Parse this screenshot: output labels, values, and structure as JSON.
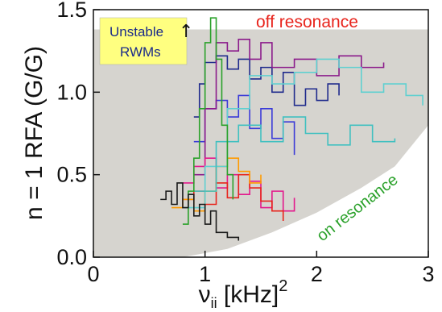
{
  "chart_data": {
    "type": "line",
    "xlabel_main": "ν",
    "xlabel_sub": "ii",
    "xlabel_unit": " [kHz]",
    "xlabel_sup": "2",
    "ylabel": "n = 1 RFA (G/G)",
    "xlim": [
      0,
      3
    ],
    "ylim": [
      0,
      1.5
    ],
    "x_ticks": [
      "0",
      "1",
      "2",
      "3"
    ],
    "y_ticks": [
      "0.0",
      "0.5",
      "1.0",
      "1.5"
    ],
    "stable_region_ymax": 1.38,
    "resonance_boundary": [
      [
        0.8,
        0.0
      ],
      [
        1.2,
        0.05
      ],
      [
        1.6,
        0.15
      ],
      [
        2.0,
        0.27
      ],
      [
        2.4,
        0.42
      ],
      [
        2.7,
        0.55
      ],
      [
        3.0,
        0.8
      ]
    ],
    "annotations": {
      "off_resonance": "off resonance",
      "on_resonance": "on resonance",
      "unstable_line1": "Unstable",
      "unstable_line2": "RWMs",
      "arrow": "↑"
    },
    "colors": {
      "region": "#d6d4cf",
      "boundary": "#ffffff",
      "box": "#ffff80",
      "off_resonance": "#e8241c",
      "on_resonance": "#2aa12a"
    },
    "series": [
      {
        "color": "#1f2a8c",
        "points": [
          [
            0.9,
            0.85
          ],
          [
            0.95,
            1.05
          ],
          [
            1.0,
            1.18
          ],
          [
            1.1,
            1.22
          ],
          [
            1.2,
            1.14
          ],
          [
            1.3,
            1.2
          ],
          [
            1.4,
            1.08
          ],
          [
            1.5,
            1.15
          ],
          [
            1.6,
            1.0
          ],
          [
            1.7,
            1.12
          ],
          [
            1.8,
            0.92
          ],
          [
            1.9,
            1.02
          ],
          [
            2.0,
            0.95
          ],
          [
            2.1,
            1.05
          ],
          [
            2.2,
            0.98
          ]
        ]
      },
      {
        "color": "#3a3ad8",
        "points": [
          [
            0.9,
            0.7
          ],
          [
            1.0,
            0.9
          ],
          [
            1.1,
            0.95
          ],
          [
            1.2,
            0.85
          ],
          [
            1.3,
            0.98
          ],
          [
            1.4,
            0.78
          ],
          [
            1.5,
            0.9
          ],
          [
            1.6,
            0.72
          ],
          [
            1.7,
            0.82
          ],
          [
            1.8,
            0.62
          ]
        ]
      },
      {
        "color": "#8b1a8b",
        "points": [
          [
            0.9,
            0.5
          ],
          [
            1.0,
            0.9
          ],
          [
            1.1,
            1.3
          ],
          [
            1.2,
            1.25
          ],
          [
            1.3,
            1.32
          ],
          [
            1.4,
            1.2
          ],
          [
            1.5,
            1.3
          ],
          [
            1.6,
            1.15
          ],
          [
            1.8,
            1.2
          ],
          [
            2.0,
            1.1
          ],
          [
            2.2,
            1.22
          ],
          [
            2.4,
            1.15
          ],
          [
            2.6,
            1.18
          ]
        ]
      },
      {
        "color": "#e3188c",
        "points": [
          [
            0.8,
            0.45
          ],
          [
            0.9,
            0.55
          ],
          [
            1.0,
            0.6
          ],
          [
            1.1,
            0.42
          ],
          [
            1.2,
            0.5
          ],
          [
            1.3,
            0.38
          ],
          [
            1.4,
            0.46
          ],
          [
            1.5,
            0.3
          ],
          [
            1.6,
            0.4
          ],
          [
            1.7,
            0.28
          ],
          [
            1.8,
            0.36
          ]
        ]
      },
      {
        "color": "#e8241c",
        "points": [
          [
            0.8,
            0.35
          ],
          [
            0.9,
            0.4
          ],
          [
            1.0,
            0.32
          ],
          [
            1.1,
            0.45
          ],
          [
            1.2,
            0.36
          ],
          [
            1.3,
            0.5
          ],
          [
            1.4,
            0.42
          ],
          [
            1.5,
            0.34
          ],
          [
            1.6,
            0.28
          ],
          [
            1.7,
            0.22
          ]
        ]
      },
      {
        "color": "#ff9a00",
        "points": [
          [
            0.7,
            0.3
          ],
          [
            0.8,
            0.35
          ],
          [
            0.9,
            0.28
          ],
          [
            1.0,
            0.4
          ],
          [
            1.1,
            0.55
          ],
          [
            1.2,
            0.6
          ],
          [
            1.3,
            0.52
          ],
          [
            1.4,
            0.45
          ],
          [
            1.5,
            0.5
          ]
        ]
      },
      {
        "color": "#5fd0d0",
        "points": [
          [
            0.8,
            0.3
          ],
          [
            1.0,
            0.55
          ],
          [
            1.2,
            0.9
          ],
          [
            1.4,
            1.1
          ],
          [
            1.6,
            1.05
          ],
          [
            1.8,
            1.12
          ],
          [
            2.0,
            1.2
          ],
          [
            2.2,
            1.15
          ],
          [
            2.4,
            1.0
          ],
          [
            2.6,
            1.05
          ],
          [
            2.8,
            0.98
          ],
          [
            2.95,
            0.92
          ]
        ]
      },
      {
        "color": "#40c0c0",
        "points": [
          [
            0.9,
            0.4
          ],
          [
            1.1,
            0.7
          ],
          [
            1.3,
            0.8
          ],
          [
            1.5,
            0.7
          ],
          [
            1.7,
            0.85
          ],
          [
            1.9,
            0.75
          ],
          [
            2.1,
            0.68
          ],
          [
            2.3,
            0.8
          ],
          [
            2.5,
            0.7
          ],
          [
            2.7,
            0.72
          ]
        ]
      },
      {
        "color": "#2aa12a",
        "points": [
          [
            0.8,
            0.2
          ],
          [
            0.85,
            0.4
          ],
          [
            0.9,
            0.6
          ],
          [
            0.95,
            0.9
          ],
          [
            1.0,
            1.3
          ],
          [
            1.05,
            1.45
          ],
          [
            1.1,
            1.2
          ],
          [
            1.15,
            0.8
          ],
          [
            1.2,
            0.5
          ],
          [
            1.25,
            0.35
          ]
        ]
      },
      {
        "color": "#1a1a1a",
        "points": [
          [
            0.6,
            0.35
          ],
          [
            0.65,
            0.4
          ],
          [
            0.7,
            0.32
          ],
          [
            0.75,
            0.45
          ],
          [
            0.8,
            0.3
          ],
          [
            0.85,
            0.38
          ],
          [
            0.9,
            0.25
          ],
          [
            0.95,
            0.32
          ],
          [
            1.0,
            0.2
          ],
          [
            1.05,
            0.28
          ],
          [
            1.1,
            0.15
          ],
          [
            1.2,
            0.12
          ],
          [
            1.3,
            0.1
          ]
        ]
      }
    ]
  }
}
